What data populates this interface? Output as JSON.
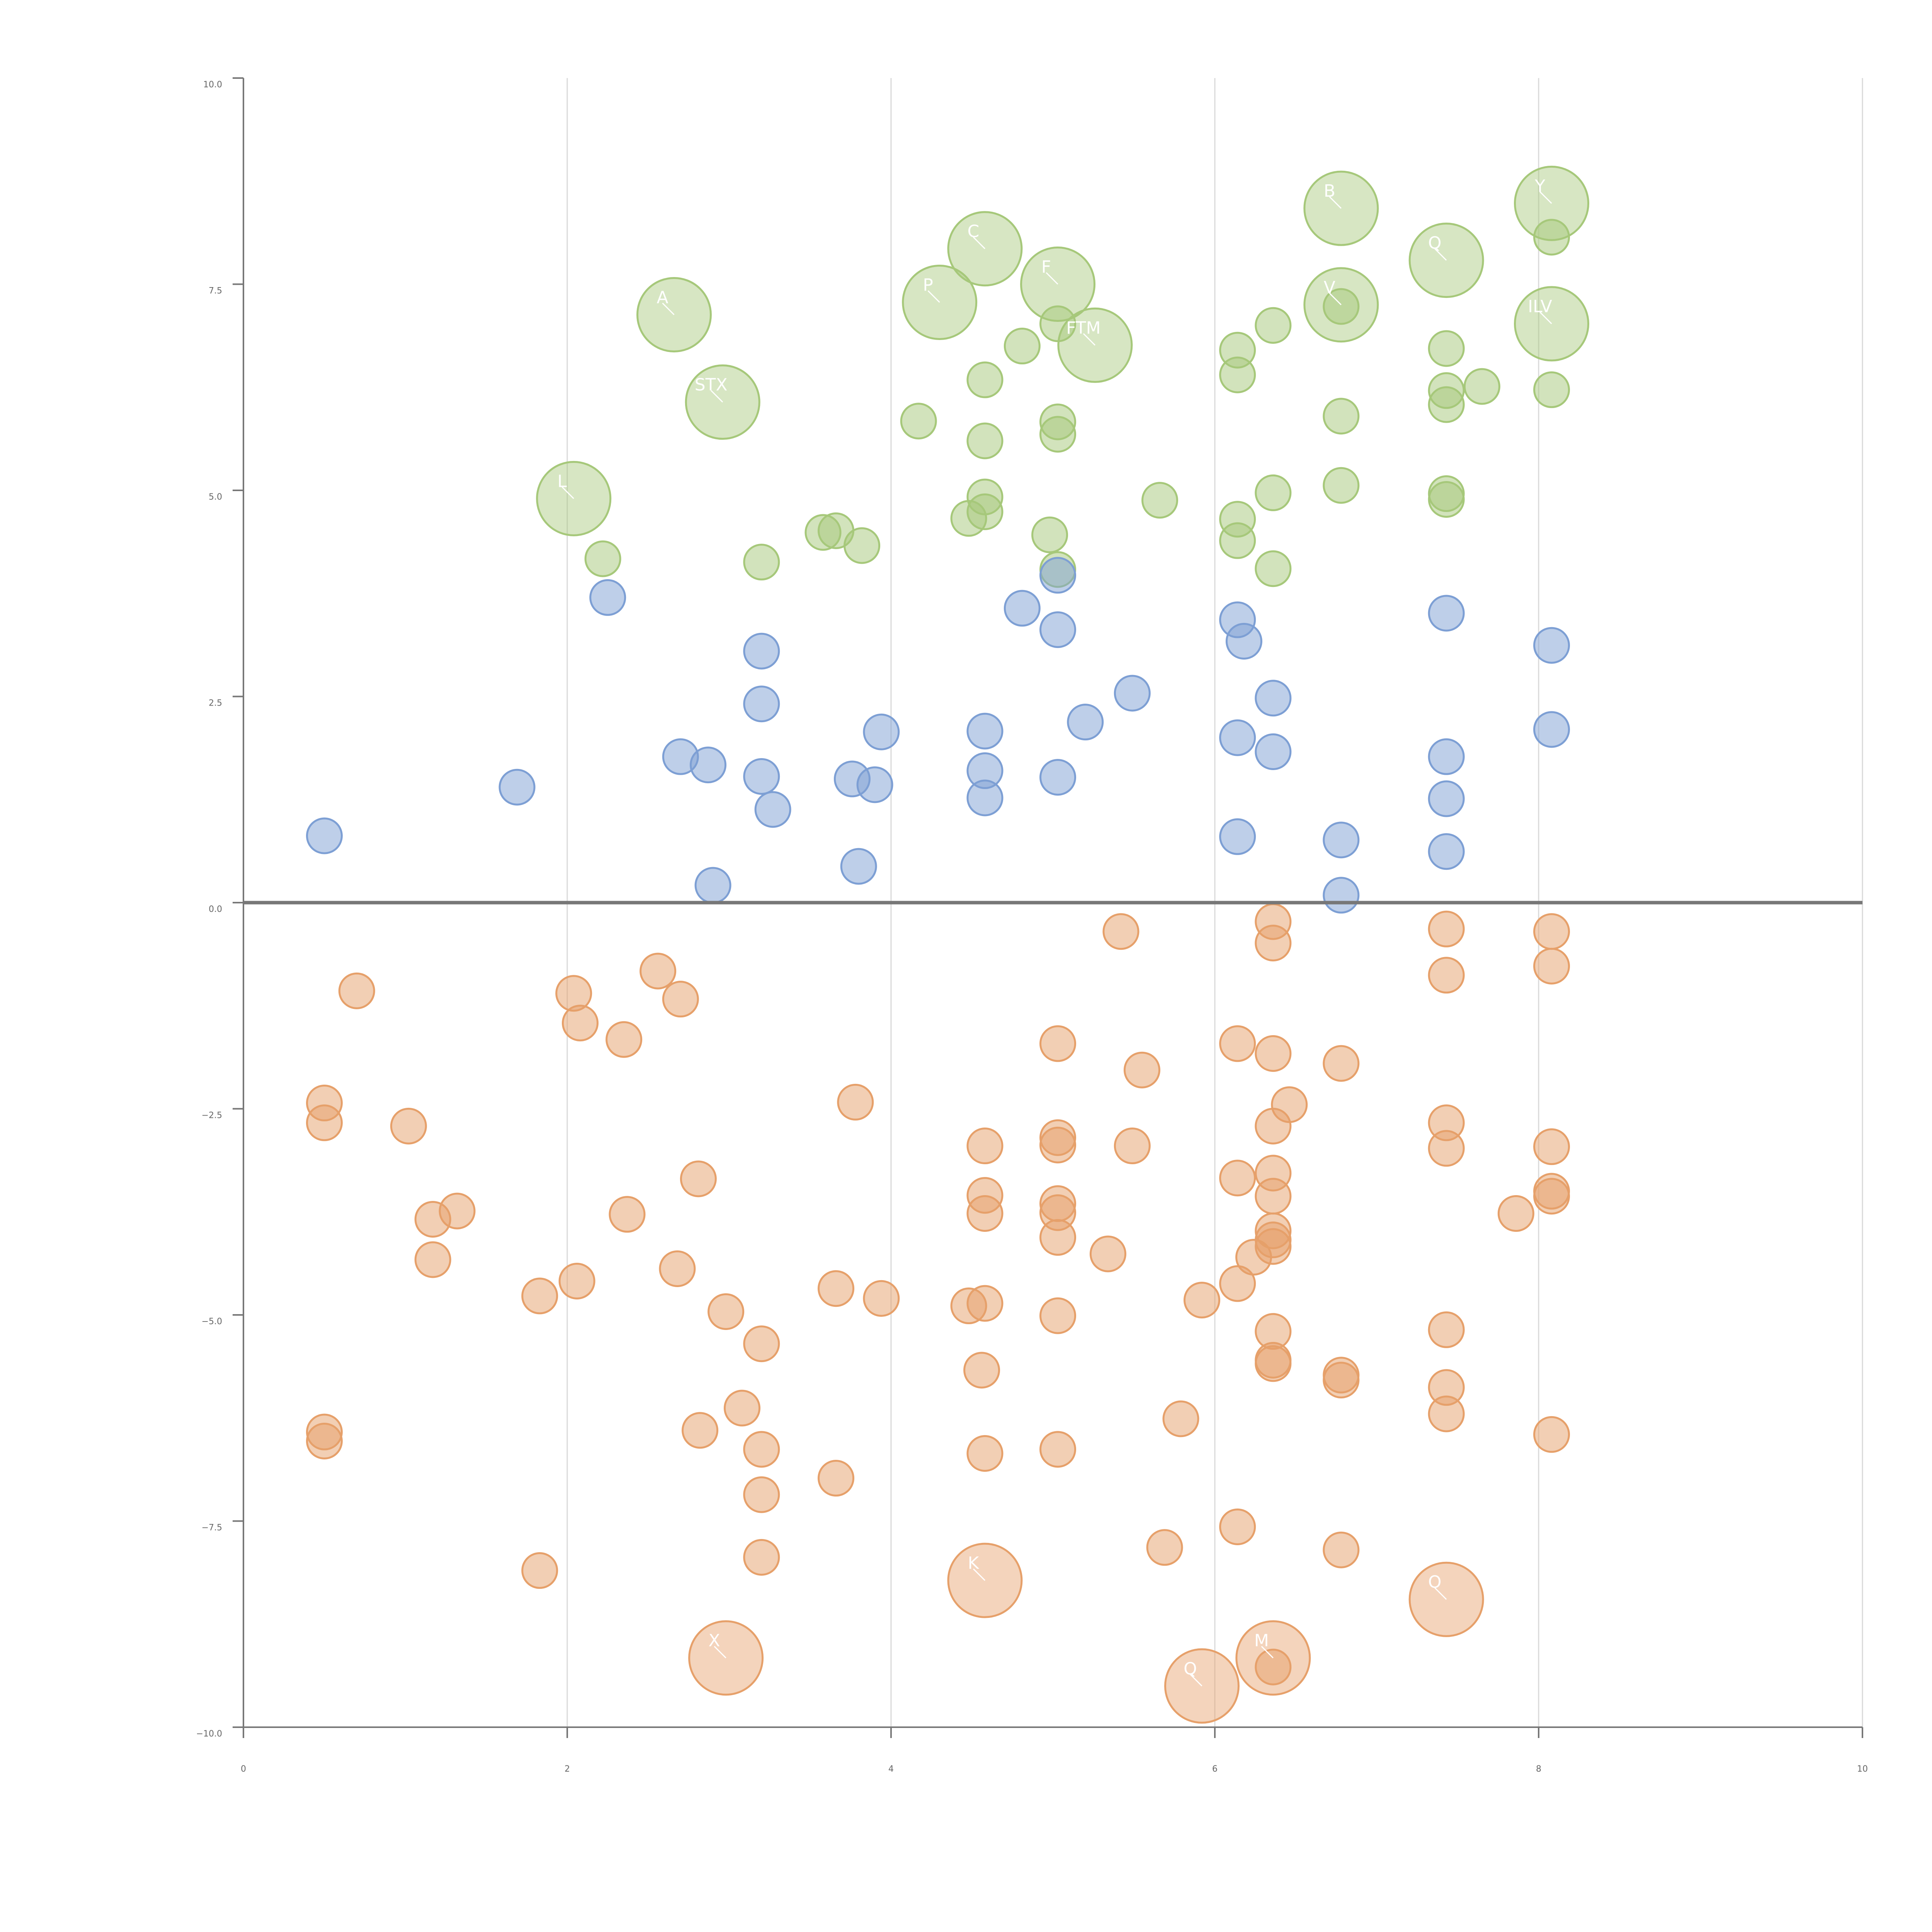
{
  "chart_data": {
    "type": "scatter",
    "title": "",
    "xlabel": "",
    "ylabel": "",
    "xlim": [
      0,
      10
    ],
    "ylim": [
      -10,
      10
    ],
    "x_ticks": [
      "0",
      "2",
      "4",
      "6",
      "8",
      "10"
    ],
    "y_ticks": [
      "10.0",
      "7.5",
      "5.0",
      "2.5",
      "0.0",
      "−2.5",
      "−5.0",
      "−7.5",
      "−10.0"
    ],
    "grid": "vertical",
    "colors": {
      "green": "#a6c87a",
      "blue": "#7d9fd4",
      "orange": "#e6a06a",
      "axis": "#777777",
      "gridline": "#d9d9d9"
    },
    "series": [
      {
        "name": "green",
        "color": "#a6c87a",
        "points": [
          [
            2.22,
            4.17
          ],
          [
            3.2,
            4.13
          ],
          [
            3.58,
            4.49
          ],
          [
            3.66,
            4.51
          ],
          [
            3.82,
            4.33
          ],
          [
            4.17,
            5.84
          ],
          [
            4.48,
            4.66
          ],
          [
            4.58,
            4.74
          ],
          [
            4.58,
            4.92
          ],
          [
            4.58,
            5.6
          ],
          [
            4.58,
            6.34
          ],
          [
            4.81,
            6.75
          ],
          [
            4.98,
            4.46
          ],
          [
            5.03,
            4.04
          ],
          [
            5.03,
            5.68
          ],
          [
            5.03,
            5.83
          ],
          [
            5.03,
            7.02
          ],
          [
            5.66,
            4.88
          ],
          [
            6.14,
            4.39
          ],
          [
            6.14,
            4.65
          ],
          [
            6.14,
            6.4
          ],
          [
            6.14,
            6.7
          ],
          [
            6.36,
            4.05
          ],
          [
            6.36,
            4.97
          ],
          [
            6.36,
            7.0
          ],
          [
            6.78,
            5.06
          ],
          [
            6.78,
            5.9
          ],
          [
            6.78,
            7.23
          ],
          [
            7.43,
            4.89
          ],
          [
            7.43,
            4.96
          ],
          [
            7.43,
            6.04
          ],
          [
            7.43,
            6.21
          ],
          [
            7.43,
            6.72
          ],
          [
            7.65,
            6.26
          ],
          [
            8.08,
            6.22
          ],
          [
            8.08,
            8.07
          ]
        ],
        "large": [
          [
            2.04,
            4.9,
            "L"
          ],
          [
            2.66,
            7.13,
            "A"
          ],
          [
            2.96,
            6.07,
            "STX"
          ],
          [
            4.3,
            7.28,
            "P"
          ],
          [
            4.58,
            7.93,
            "C"
          ],
          [
            5.03,
            7.5,
            "F"
          ],
          [
            5.26,
            6.76,
            "FTM"
          ],
          [
            6.78,
            8.42,
            "B"
          ],
          [
            6.78,
            7.25,
            "V"
          ],
          [
            7.43,
            7.79,
            "Q"
          ],
          [
            8.08,
            8.48,
            "Y"
          ],
          [
            8.08,
            7.02,
            "ILV"
          ]
        ]
      },
      {
        "name": "blue",
        "color": "#7d9fd4",
        "points": [
          [
            0.5,
            0.81
          ],
          [
            1.69,
            1.4
          ],
          [
            2.25,
            3.7
          ],
          [
            2.7,
            1.77
          ],
          [
            2.87,
            1.67
          ],
          [
            2.9,
            0.21
          ],
          [
            3.2,
            1.53
          ],
          [
            3.2,
            2.41
          ],
          [
            3.2,
            3.05
          ],
          [
            3.27,
            1.13
          ],
          [
            3.76,
            1.5
          ],
          [
            3.8,
            0.44
          ],
          [
            3.9,
            1.43
          ],
          [
            3.94,
            2.07
          ],
          [
            4.58,
            1.27
          ],
          [
            4.58,
            1.6
          ],
          [
            4.58,
            2.08
          ],
          [
            4.81,
            3.57
          ],
          [
            5.03,
            1.52
          ],
          [
            5.03,
            3.31
          ],
          [
            5.03,
            3.97
          ],
          [
            5.2,
            2.19
          ],
          [
            5.49,
            2.54
          ],
          [
            6.14,
            0.8
          ],
          [
            6.14,
            2.0
          ],
          [
            6.14,
            3.43
          ],
          [
            6.18,
            3.17
          ],
          [
            6.36,
            1.83
          ],
          [
            6.36,
            2.48
          ],
          [
            6.78,
            0.09
          ],
          [
            6.78,
            0.76
          ],
          [
            7.43,
            0.62
          ],
          [
            7.43,
            1.26
          ],
          [
            7.43,
            1.77
          ],
          [
            7.43,
            3.51
          ],
          [
            8.08,
            2.1
          ],
          [
            8.08,
            3.12
          ]
        ],
        "large": []
      },
      {
        "name": "orange",
        "color": "#e6a06a",
        "points": [
          [
            0.5,
            -2.43
          ],
          [
            0.5,
            -2.67
          ],
          [
            0.5,
            -6.42
          ],
          [
            0.5,
            -6.53
          ],
          [
            0.7,
            -1.07
          ],
          [
            1.02,
            -2.71
          ],
          [
            1.17,
            -3.84
          ],
          [
            1.17,
            -4.33
          ],
          [
            1.32,
            -3.74
          ],
          [
            1.83,
            -4.77
          ],
          [
            1.83,
            -8.1
          ],
          [
            2.04,
            -1.1
          ],
          [
            2.06,
            -4.59
          ],
          [
            2.08,
            -1.46
          ],
          [
            2.35,
            -1.66
          ],
          [
            2.37,
            -3.78
          ],
          [
            2.56,
            -0.83
          ],
          [
            2.68,
            -4.44
          ],
          [
            2.7,
            -1.17
          ],
          [
            2.81,
            -3.35
          ],
          [
            2.82,
            -6.4
          ],
          [
            2.98,
            -4.96
          ],
          [
            3.08,
            -6.13
          ],
          [
            3.2,
            -5.35
          ],
          [
            3.2,
            -6.63
          ],
          [
            3.2,
            -7.18
          ],
          [
            3.2,
            -7.94
          ],
          [
            3.66,
            -4.68
          ],
          [
            3.66,
            -6.98
          ],
          [
            3.78,
            -2.42
          ],
          [
            3.94,
            -4.8
          ],
          [
            4.48,
            -4.89
          ],
          [
            4.56,
            -5.67
          ],
          [
            4.58,
            -2.95
          ],
          [
            4.58,
            -3.55
          ],
          [
            4.58,
            -3.77
          ],
          [
            4.58,
            -4.86
          ],
          [
            4.58,
            -6.68
          ],
          [
            5.03,
            -1.71
          ],
          [
            5.03,
            -2.85
          ],
          [
            5.03,
            -2.94
          ],
          [
            5.03,
            -3.65
          ],
          [
            5.03,
            -3.76
          ],
          [
            5.03,
            -4.06
          ],
          [
            5.03,
            -5.01
          ],
          [
            5.03,
            -6.63
          ],
          [
            5.34,
            -4.26
          ],
          [
            5.42,
            -0.35
          ],
          [
            5.49,
            -2.95
          ],
          [
            5.55,
            -2.03
          ],
          [
            5.69,
            -7.82
          ],
          [
            5.79,
            -6.26
          ],
          [
            5.92,
            -4.82
          ],
          [
            6.14,
            -1.71
          ],
          [
            6.14,
            -3.34
          ],
          [
            6.14,
            -4.62
          ],
          [
            6.14,
            -7.57
          ],
          [
            6.24,
            -4.3
          ],
          [
            6.36,
            -0.23
          ],
          [
            6.36,
            -0.49
          ],
          [
            6.36,
            -1.83
          ],
          [
            6.36,
            -2.71
          ],
          [
            6.36,
            -3.28
          ],
          [
            6.36,
            -3.56
          ],
          [
            6.36,
            -3.98
          ],
          [
            6.36,
            -4.09
          ],
          [
            6.36,
            -4.17
          ],
          [
            6.36,
            -5.2
          ],
          [
            6.36,
            -5.55
          ],
          [
            6.36,
            -5.59
          ],
          [
            6.36,
            -9.27
          ],
          [
            6.46,
            -2.45
          ],
          [
            6.78,
            -1.95
          ],
          [
            6.78,
            -5.73
          ],
          [
            6.78,
            -5.79
          ],
          [
            6.78,
            -7.85
          ],
          [
            7.43,
            -0.32
          ],
          [
            7.43,
            -0.88
          ],
          [
            7.43,
            -2.67
          ],
          [
            7.43,
            -2.98
          ],
          [
            7.43,
            -5.18
          ],
          [
            7.43,
            -5.88
          ],
          [
            7.43,
            -6.2
          ],
          [
            7.86,
            -3.77
          ],
          [
            8.08,
            -0.35
          ],
          [
            8.08,
            -0.77
          ],
          [
            8.08,
            -2.96
          ],
          [
            8.08,
            -3.5
          ],
          [
            8.08,
            -3.56
          ],
          [
            8.08,
            -6.45
          ]
        ],
        "large": [
          [
            2.98,
            -9.16,
            "X"
          ],
          [
            4.58,
            -8.22,
            "K"
          ],
          [
            5.92,
            -9.5,
            "Q"
          ],
          [
            6.36,
            -9.16,
            "M"
          ],
          [
            7.43,
            -8.45,
            "O"
          ]
        ]
      }
    ]
  }
}
